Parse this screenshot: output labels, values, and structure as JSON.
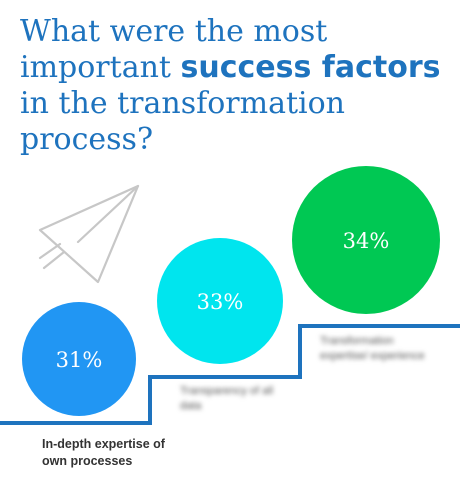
{
  "title": {
    "part1": "What were the most important ",
    "strong": "success factors",
    "part2": " in the transformation process?"
  },
  "colors": {
    "title": "#1e73be",
    "step_line": "#1e73be",
    "plane": "#c7c7c7"
  },
  "icon": "paper-plane-icon",
  "chart_data": {
    "type": "bubble",
    "categories": [
      "In-depth expertise of own processes",
      "Transparency of all data",
      "Transformation expertise/ experience"
    ],
    "values": [
      31,
      33,
      34
    ],
    "value_labels": [
      "31%",
      "33%",
      "34%"
    ],
    "colors": [
      "#2196f3",
      "#00e5ee",
      "#00c853"
    ]
  }
}
